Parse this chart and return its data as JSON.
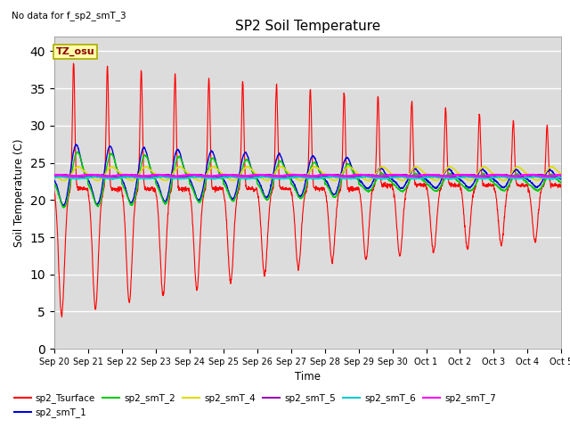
{
  "title": "SP2 Soil Temperature",
  "subtitle": "No data for f_sp2_smT_3",
  "ylabel": "Soil Temperature (C)",
  "xlabel": "Time",
  "tz_label": "TZ_osu",
  "ylim": [
    0,
    42
  ],
  "yticks": [
    0,
    5,
    10,
    15,
    20,
    25,
    30,
    35,
    40
  ],
  "bg_color": "#dcdcdc",
  "series_colors": {
    "sp2_Tsurface": "#ff0000",
    "sp2_smT_1": "#0000dd",
    "sp2_smT_2": "#00cc00",
    "sp2_smT_4": "#dddd00",
    "sp2_smT_5": "#9900bb",
    "sp2_smT_6": "#00cccc",
    "sp2_smT_7": "#ff00ff"
  },
  "tick_labels": [
    "Sep 20",
    "Sep 21",
    "Sep 22",
    "Sep 23",
    "Sep 24",
    "Sep 25",
    "Sep 26",
    "Sep 27",
    "Sep 28",
    "Sep 29",
    "Sep 30",
    "Oct 1",
    "Oct 2",
    "Oct 3",
    "Oct 4",
    "Oct 5"
  ]
}
